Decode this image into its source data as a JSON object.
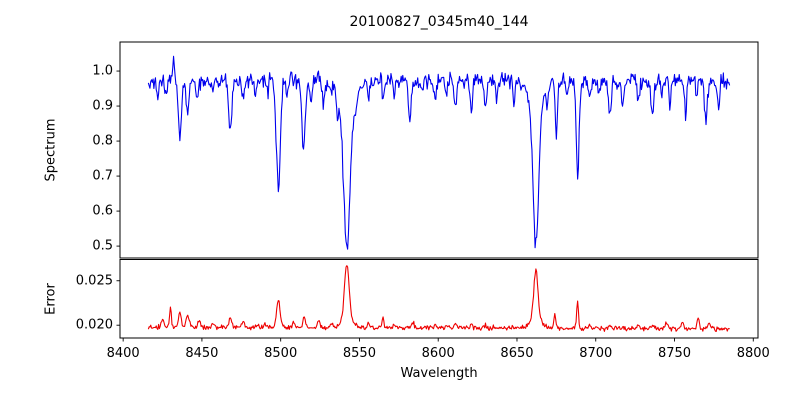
{
  "title": "20100827_0345m40_144",
  "xlabel": "Wavelength",
  "xtick_labels": [
    "8400",
    "8450",
    "8500",
    "8550",
    "8600",
    "8650",
    "8700",
    "8750",
    "8800"
  ],
  "colors": {
    "spectrum_line": "#0000ee",
    "error_line": "#ee0000",
    "axis": "#000000",
    "background": "#ffffff"
  },
  "chart_data": [
    {
      "type": "line",
      "series": "spectrum",
      "ylabel": "Spectrum",
      "color": "#0000ee",
      "xlim": [
        8398,
        8803
      ],
      "x_start": 8416,
      "x_end": 8785,
      "x_step": 0.5,
      "ylim": [
        0.466,
        1.083
      ],
      "ytick_labels": [
        "0.5",
        "0.6",
        "0.7",
        "0.8",
        "0.9",
        "1.0"
      ],
      "continuum": 0.972,
      "noise_sigma": 0.011,
      "noise_seed": 1234567,
      "absorption_lines_format": "[center_wavelength_A, depth, sigma_A] (negative depth = upward spike)",
      "absorption_lines": [
        [
          8422,
          0.05,
          0.7
        ],
        [
          8427,
          0.04,
          0.6
        ],
        [
          8432,
          -0.065,
          0.5
        ],
        [
          8436,
          0.165,
          1.0
        ],
        [
          8441,
          0.09,
          0.9
        ],
        [
          8447,
          0.06,
          0.7
        ],
        [
          8457,
          0.04,
          0.6
        ],
        [
          8468,
          0.145,
          1.0
        ],
        [
          8476,
          0.05,
          0.7
        ],
        [
          8484,
          0.04,
          0.6
        ],
        [
          8492,
          0.04,
          0.5
        ],
        [
          8498.5,
          0.3,
          1.3
        ],
        [
          8504,
          0.05,
          0.6
        ],
        [
          8514.5,
          0.2,
          1.0
        ],
        [
          8519,
          0.06,
          0.6
        ],
        [
          8527,
          0.07,
          0.7
        ],
        [
          8536,
          0.05,
          0.7
        ],
        [
          8542,
          0.38,
          1.9
        ],
        [
          8542,
          0.1,
          5.0
        ],
        [
          8548,
          0.04,
          0.8
        ],
        [
          8556,
          0.05,
          0.6
        ],
        [
          8565,
          0.05,
          0.6
        ],
        [
          8572,
          0.04,
          0.6
        ],
        [
          8582,
          0.105,
          0.9
        ],
        [
          8590,
          0.04,
          0.6
        ],
        [
          8598,
          0.07,
          0.7
        ],
        [
          8605,
          0.05,
          0.6
        ],
        [
          8611,
          0.09,
          0.7
        ],
        [
          8621,
          0.09,
          0.8
        ],
        [
          8630,
          0.08,
          0.8
        ],
        [
          8637,
          0.05,
          0.6
        ],
        [
          8648,
          0.06,
          0.7
        ],
        [
          8662,
          0.38,
          1.7
        ],
        [
          8662,
          0.09,
          4.5
        ],
        [
          8669,
          0.05,
          0.7
        ],
        [
          8675,
          0.16,
          0.7
        ],
        [
          8682,
          0.05,
          0.6
        ],
        [
          8688.5,
          0.275,
          0.9
        ],
        [
          8696,
          0.05,
          0.6
        ],
        [
          8702,
          0.04,
          0.6
        ],
        [
          8709,
          0.095,
          0.8
        ],
        [
          8717,
          0.07,
          0.7
        ],
        [
          8727,
          0.06,
          0.6
        ],
        [
          8736,
          0.1,
          0.8
        ],
        [
          8742,
          0.05,
          0.6
        ],
        [
          8747,
          0.07,
          0.6
        ],
        [
          8757,
          0.09,
          0.7
        ],
        [
          8764,
          0.05,
          0.6
        ],
        [
          8770,
          0.12,
          0.8
        ],
        [
          8778,
          0.08,
          0.7
        ]
      ]
    },
    {
      "type": "line",
      "series": "error",
      "ylabel": "Error",
      "color": "#ee0000",
      "xlim": [
        8398,
        8803
      ],
      "x_start": 8416,
      "x_end": 8785,
      "x_step": 0.5,
      "ylim": [
        0.01856,
        0.02739
      ],
      "ytick_labels": [
        "0.020",
        "0.025"
      ],
      "baseline_start": 0.0198,
      "baseline_end": 0.0196,
      "noise_sigma": 0.00013,
      "noise_seed": 424242,
      "peaks_format": "[center_wavelength_A, height, sigma_A]",
      "peaks": [
        [
          8425,
          0.0007,
          0.8
        ],
        [
          8430,
          0.0022,
          0.6
        ],
        [
          8436,
          0.0018,
          0.8
        ],
        [
          8441,
          0.0015,
          1.0
        ],
        [
          8448,
          0.0007,
          0.7
        ],
        [
          8457,
          0.0004,
          0.6
        ],
        [
          8468,
          0.001,
          0.8
        ],
        [
          8476,
          0.0008,
          0.8
        ],
        [
          8490,
          0.0005,
          0.6
        ],
        [
          8498.5,
          0.003,
          1.1
        ],
        [
          8508,
          0.0005,
          0.7
        ],
        [
          8515,
          0.0013,
          0.7
        ],
        [
          8524,
          0.0008,
          0.8
        ],
        [
          8532,
          0.0005,
          0.7
        ],
        [
          8542,
          0.006,
          1.4
        ],
        [
          8542,
          0.0012,
          3.5
        ],
        [
          8556,
          0.0005,
          0.6
        ],
        [
          8565,
          0.0013,
          0.5
        ],
        [
          8572,
          0.0004,
          0.6
        ],
        [
          8584,
          0.0006,
          0.7
        ],
        [
          8598,
          0.0004,
          0.6
        ],
        [
          8611,
          0.0005,
          0.6
        ],
        [
          8621,
          0.0005,
          0.6
        ],
        [
          8630,
          0.0004,
          0.6
        ],
        [
          8662,
          0.0055,
          1.3
        ],
        [
          8662,
          0.0011,
          3.5
        ],
        [
          8674,
          0.0015,
          0.6
        ],
        [
          8688.5,
          0.003,
          0.6
        ],
        [
          8696,
          0.0004,
          0.6
        ],
        [
          8709,
          0.0005,
          0.6
        ],
        [
          8727,
          0.0004,
          0.6
        ],
        [
          8736,
          0.0005,
          0.7
        ],
        [
          8745,
          0.0007,
          0.9
        ],
        [
          8755,
          0.0008,
          0.7
        ],
        [
          8765,
          0.0011,
          0.7
        ],
        [
          8772,
          0.0007,
          0.6
        ]
      ]
    }
  ]
}
